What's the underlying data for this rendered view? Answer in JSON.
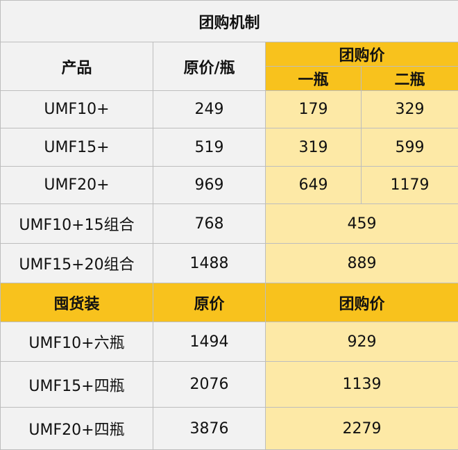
{
  "title": "团购机制",
  "header": {
    "product": "产品",
    "original": "原价/瓶",
    "group_price": "团购价",
    "one_bottle": "一瓶",
    "two_bottles": "二瓶"
  },
  "rows": [
    {
      "product": "UMF10+",
      "original": "249",
      "one": "179",
      "two": "329"
    },
    {
      "product": "UMF15+",
      "original": "519",
      "one": "319",
      "two": "599"
    },
    {
      "product": "UMF20+",
      "original": "969",
      "one": "649",
      "two": "1179"
    }
  ],
  "combos": [
    {
      "product": "UMF10+15组合",
      "original": "768",
      "group": "459"
    },
    {
      "product": "UMF15+20组合",
      "original": "1488",
      "group": "889"
    }
  ],
  "bulk_header": {
    "product": "囤货装",
    "original": "原价",
    "group_price": "团购价"
  },
  "bulk": [
    {
      "product": "UMF10+六瓶",
      "original": "1494",
      "group": "929"
    },
    {
      "product": "UMF15+四瓶",
      "original": "2076",
      "group": "1139"
    },
    {
      "product": "UMF20+四瓶",
      "original": "3876",
      "group": "2279"
    }
  ],
  "colors": {
    "gold": "#f8c21d",
    "light_gold": "#fde9a6",
    "gray": "#f2f2f2",
    "border": "#bdbdbd"
  }
}
